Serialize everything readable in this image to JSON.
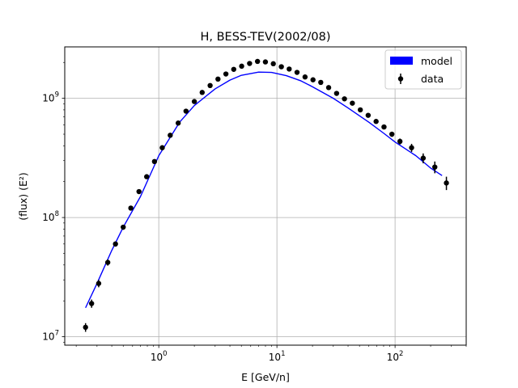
{
  "chart_data": {
    "type": "scatter",
    "title": "H, BESS-TEV(2002/08)",
    "xlabel": "E [GeV/n]",
    "ylabel": "(flux)  (E²)",
    "xscale": "log",
    "yscale": "log",
    "xlim": [
      0.16,
      400
    ],
    "ylim": [
      8500000.0,
      2700000000.0
    ],
    "xticks": [
      {
        "value": 1,
        "base": "10",
        "exp": "0"
      },
      {
        "value": 10,
        "base": "10",
        "exp": "1"
      },
      {
        "value": 100,
        "base": "10",
        "exp": "2"
      }
    ],
    "yticks": [
      {
        "value": 10000000.0,
        "base": "10",
        "exp": "7"
      },
      {
        "value": 100000000.0,
        "base": "10",
        "exp": "8"
      },
      {
        "value": 1000000000.0,
        "base": "10",
        "exp": "9"
      }
    ],
    "grid": true,
    "legend_position": "top-right",
    "series": [
      {
        "name": "model",
        "kind": "line",
        "color": "#0000ff",
        "x": [
          0.24,
          0.3,
          0.4,
          0.5,
          0.7,
          1.0,
          1.5,
          2.0,
          3.0,
          4.0,
          5.0,
          7.0,
          9.0,
          12.0,
          16.0,
          20.0,
          30.0,
          40.0,
          60.0,
          80.0,
          100.0,
          150.0,
          200.0,
          250.0
        ],
        "y": [
          17500000,
          28000000,
          53000000,
          83000000,
          150000000,
          330000000,
          630000000,
          870000000,
          1200000000,
          1420000000,
          1560000000,
          1660000000,
          1650000000,
          1550000000,
          1400000000,
          1250000000,
          1000000000,
          830000000,
          630000000,
          510000000,
          430000000,
          330000000,
          260000000,
          225000000
        ]
      },
      {
        "name": "data",
        "kind": "errorbar",
        "color": "#000000",
        "x": [
          0.24,
          0.27,
          0.31,
          0.37,
          0.43,
          0.5,
          0.58,
          0.68,
          0.79,
          0.92,
          1.07,
          1.25,
          1.46,
          1.7,
          2.0,
          2.33,
          2.72,
          3.17,
          3.7,
          4.31,
          5.03,
          5.87,
          6.85,
          7.99,
          9.32,
          10.9,
          12.7,
          14.8,
          17.3,
          20.2,
          23.5,
          27.4,
          32.0,
          37.3,
          43.5,
          50.8,
          59.2,
          69.1,
          80.6,
          94.0,
          110.0,
          138.0,
          173.0,
          217.0,
          272.0
        ],
        "y": [
          12000000,
          19000000,
          28000000,
          42000000,
          60000000,
          83000000,
          120000000,
          165000000,
          220000000,
          295000000,
          385000000,
          490000000,
          620000000,
          780000000,
          940000000,
          1120000000,
          1280000000,
          1450000000,
          1600000000,
          1750000000,
          1860000000,
          1960000000,
          2040000000,
          2020000000,
          1950000000,
          1840000000,
          1760000000,
          1650000000,
          1510000000,
          1430000000,
          1360000000,
          1230000000,
          1100000000,
          990000000,
          910000000,
          800000000,
          720000000,
          640000000,
          575000000,
          500000000,
          435000000,
          385000000,
          315000000,
          265000000,
          195000000
        ],
        "yerr": [
          1000000,
          1500000,
          2000000,
          2500000,
          3000000,
          4000000,
          5000000,
          6000000,
          8000000,
          10000000,
          12000000,
          15000000,
          18000000,
          20000000,
          25000000,
          30000000,
          30000000,
          35000000,
          40000000,
          40000000,
          45000000,
          45000000,
          50000000,
          50000000,
          50000000,
          45000000,
          45000000,
          40000000,
          40000000,
          40000000,
          40000000,
          35000000,
          35000000,
          30000000,
          30000000,
          30000000,
          25000000,
          25000000,
          25000000,
          25000000,
          25000000,
          30000000,
          30000000,
          30000000,
          25000000
        ]
      }
    ]
  }
}
